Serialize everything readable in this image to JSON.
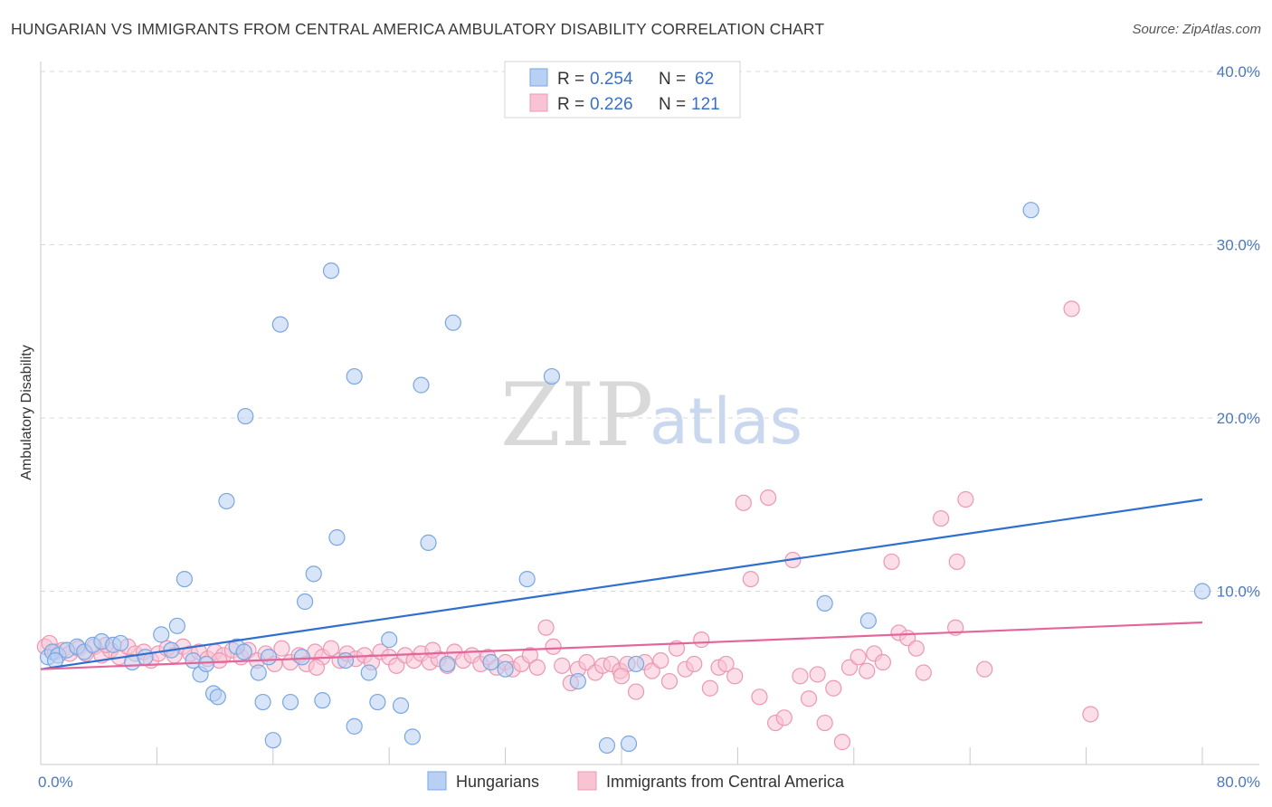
{
  "title": "HUNGARIAN VS IMMIGRANTS FROM CENTRAL AMERICA AMBULATORY DISABILITY CORRELATION CHART",
  "source": "Source: ZipAtlas.com",
  "watermark": {
    "zip": "ZIP",
    "atlas": "atlas"
  },
  "legend": {
    "r_label": "R =",
    "n_label": "N =",
    "series": [
      {
        "r": "0.254",
        "n": "62"
      },
      {
        "r": "0.226",
        "n": "121"
      }
    ]
  },
  "colors": {
    "blue_fill": "#b8d0f3",
    "blue_stroke": "#7aa6e0",
    "blue_line": "#2f6fd0",
    "pink_fill": "#f8c3d3",
    "pink_stroke": "#eb98b3",
    "pink_line": "#e3669a",
    "tick_label": "#4a78c4",
    "grid": "#d9d9d9"
  },
  "chart_data": {
    "type": "scatter",
    "title": "HUNGARIAN VS IMMIGRANTS FROM CENTRAL AMERICA AMBULATORY DISABILITY CORRELATION CHART",
    "xlabel": "",
    "ylabel": "Ambulatory Disability",
    "xlim": [
      0,
      80
    ],
    "ylim": [
      0,
      40
    ],
    "x_tick_labels": [
      "0.0%",
      "80.0%"
    ],
    "y_ticks": [
      10,
      20,
      30,
      40
    ],
    "y_tick_labels": [
      "10.0%",
      "20.0%",
      "30.0%",
      "40.0%"
    ],
    "grid": true,
    "legend_position": "top-center",
    "series": [
      {
        "name": "Hungarians",
        "r": 0.254,
        "n": 62,
        "trend": {
          "x": [
            0,
            80
          ],
          "y": [
            5.5,
            15.3
          ]
        },
        "points": [
          [
            0.5,
            6.2
          ],
          [
            0.8,
            6.5
          ],
          [
            1.2,
            6.3
          ],
          [
            1.8,
            6.6
          ],
          [
            2.5,
            6.8
          ],
          [
            3.0,
            6.5
          ],
          [
            3.6,
            6.9
          ],
          [
            4.2,
            7.1
          ],
          [
            5.0,
            6.9
          ],
          [
            5.5,
            7.0
          ],
          [
            6.3,
            5.9
          ],
          [
            7.2,
            6.2
          ],
          [
            8.3,
            7.5
          ],
          [
            9.0,
            6.6
          ],
          [
            9.4,
            8.0
          ],
          [
            9.9,
            10.7
          ],
          [
            10.5,
            6.0
          ],
          [
            11.0,
            5.2
          ],
          [
            11.4,
            5.8
          ],
          [
            11.9,
            4.1
          ],
          [
            12.2,
            3.9
          ],
          [
            12.8,
            15.2
          ],
          [
            13.5,
            6.8
          ],
          [
            14.0,
            6.5
          ],
          [
            14.1,
            20.1
          ],
          [
            15.0,
            5.3
          ],
          [
            15.3,
            3.6
          ],
          [
            15.7,
            6.2
          ],
          [
            16.0,
            1.4
          ],
          [
            16.5,
            25.4
          ],
          [
            17.2,
            3.6
          ],
          [
            18.0,
            6.2
          ],
          [
            18.2,
            9.4
          ],
          [
            18.8,
            11.0
          ],
          [
            19.4,
            3.7
          ],
          [
            20.0,
            28.5
          ],
          [
            20.4,
            13.1
          ],
          [
            21.0,
            6.0
          ],
          [
            21.6,
            2.2
          ],
          [
            21.6,
            22.4
          ],
          [
            22.6,
            5.3
          ],
          [
            23.2,
            3.6
          ],
          [
            24.0,
            7.2
          ],
          [
            24.8,
            3.4
          ],
          [
            25.6,
            1.6
          ],
          [
            26.2,
            21.9
          ],
          [
            26.7,
            12.8
          ],
          [
            28.0,
            5.8
          ],
          [
            28.4,
            25.5
          ],
          [
            31.0,
            5.9
          ],
          [
            32.0,
            5.5
          ],
          [
            33.5,
            10.7
          ],
          [
            35.2,
            22.4
          ],
          [
            37.0,
            4.8
          ],
          [
            39.0,
            1.1
          ],
          [
            40.5,
            1.2
          ],
          [
            41.0,
            5.8
          ],
          [
            54.0,
            9.3
          ],
          [
            57.0,
            8.3
          ],
          [
            68.2,
            32.0
          ],
          [
            80.0,
            10.0
          ],
          [
            1.0,
            6.0
          ]
        ]
      },
      {
        "name": "Immigrants from Central America",
        "r": 0.226,
        "n": 121,
        "trend": {
          "x": [
            0,
            80
          ],
          "y": [
            5.5,
            8.2
          ]
        },
        "points": [
          [
            0.3,
            6.8
          ],
          [
            0.6,
            7.0
          ],
          [
            1.0,
            6.5
          ],
          [
            1.5,
            6.6
          ],
          [
            2.0,
            6.4
          ],
          [
            2.6,
            6.7
          ],
          [
            3.1,
            6.4
          ],
          [
            3.7,
            6.8
          ],
          [
            4.2,
            6.3
          ],
          [
            4.8,
            6.6
          ],
          [
            5.4,
            6.2
          ],
          [
            6.0,
            6.8
          ],
          [
            6.5,
            6.4
          ],
          [
            7.1,
            6.5
          ],
          [
            7.6,
            6.0
          ],
          [
            8.1,
            6.4
          ],
          [
            8.7,
            6.7
          ],
          [
            9.2,
            6.3
          ],
          [
            9.8,
            6.8
          ],
          [
            10.3,
            6.4
          ],
          [
            10.9,
            6.5
          ],
          [
            11.5,
            6.1
          ],
          [
            12.0,
            6.5
          ],
          [
            12.6,
            6.3
          ],
          [
            13.2,
            6.6
          ],
          [
            13.8,
            6.2
          ],
          [
            14.3,
            6.6
          ],
          [
            14.9,
            6.0
          ],
          [
            15.5,
            6.4
          ],
          [
            16.1,
            5.8
          ],
          [
            16.6,
            6.7
          ],
          [
            17.2,
            5.9
          ],
          [
            17.8,
            6.3
          ],
          [
            18.3,
            5.8
          ],
          [
            18.9,
            6.5
          ],
          [
            19.4,
            6.2
          ],
          [
            20.0,
            6.7
          ],
          [
            20.6,
            6.0
          ],
          [
            21.1,
            6.4
          ],
          [
            21.7,
            6.1
          ],
          [
            22.3,
            6.3
          ],
          [
            22.8,
            5.9
          ],
          [
            23.4,
            6.5
          ],
          [
            24.0,
            6.2
          ],
          [
            24.5,
            5.7
          ],
          [
            25.1,
            6.3
          ],
          [
            25.7,
            6.0
          ],
          [
            26.2,
            6.4
          ],
          [
            26.8,
            5.9
          ],
          [
            27.4,
            6.1
          ],
          [
            28.0,
            5.7
          ],
          [
            28.5,
            6.5
          ],
          [
            29.1,
            6.0
          ],
          [
            29.7,
            6.3
          ],
          [
            30.3,
            5.8
          ],
          [
            30.8,
            6.2
          ],
          [
            31.4,
            5.6
          ],
          [
            32.0,
            5.9
          ],
          [
            32.5,
            5.5
          ],
          [
            33.1,
            5.8
          ],
          [
            33.7,
            6.3
          ],
          [
            34.2,
            5.6
          ],
          [
            34.8,
            7.9
          ],
          [
            35.3,
            6.8
          ],
          [
            35.9,
            5.7
          ],
          [
            36.5,
            4.7
          ],
          [
            37.0,
            5.5
          ],
          [
            37.6,
            5.9
          ],
          [
            38.2,
            5.3
          ],
          [
            38.7,
            5.7
          ],
          [
            39.3,
            5.8
          ],
          [
            39.9,
            5.4
          ],
          [
            40.4,
            5.8
          ],
          [
            41.0,
            4.2
          ],
          [
            41.6,
            5.9
          ],
          [
            42.1,
            5.4
          ],
          [
            42.7,
            6.0
          ],
          [
            43.3,
            4.8
          ],
          [
            43.8,
            6.7
          ],
          [
            44.4,
            5.5
          ],
          [
            45.0,
            5.8
          ],
          [
            45.5,
            7.2
          ],
          [
            46.1,
            4.4
          ],
          [
            46.7,
            5.6
          ],
          [
            47.2,
            5.8
          ],
          [
            47.8,
            5.1
          ],
          [
            48.4,
            15.1
          ],
          [
            48.9,
            10.7
          ],
          [
            49.5,
            3.9
          ],
          [
            50.1,
            15.4
          ],
          [
            50.6,
            2.4
          ],
          [
            51.2,
            2.7
          ],
          [
            51.8,
            11.8
          ],
          [
            52.3,
            5.1
          ],
          [
            52.9,
            3.8
          ],
          [
            53.5,
            5.2
          ],
          [
            54.0,
            2.4
          ],
          [
            54.6,
            4.4
          ],
          [
            55.2,
            1.3
          ],
          [
            55.7,
            5.6
          ],
          [
            56.3,
            6.2
          ],
          [
            56.9,
            5.4
          ],
          [
            57.4,
            6.4
          ],
          [
            58.0,
            5.9
          ],
          [
            58.6,
            11.7
          ],
          [
            59.1,
            7.6
          ],
          [
            59.7,
            7.3
          ],
          [
            60.3,
            6.7
          ],
          [
            60.8,
            5.3
          ],
          [
            62.0,
            14.2
          ],
          [
            63.1,
            11.7
          ],
          [
            63.7,
            15.3
          ],
          [
            63.0,
            7.9
          ],
          [
            65.0,
            5.5
          ],
          [
            71.0,
            26.3
          ],
          [
            72.3,
            2.9
          ],
          [
            4.5,
            6.9
          ],
          [
            12.3,
            6.0
          ],
          [
            19.0,
            5.6
          ],
          [
            27.0,
            6.6
          ],
          [
            40.0,
            5.1
          ]
        ]
      }
    ]
  }
}
